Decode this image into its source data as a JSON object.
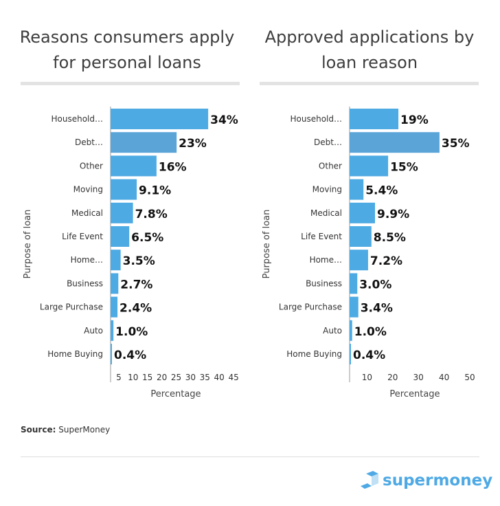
{
  "chart_data": [
    {
      "type": "bar",
      "orientation": "horizontal",
      "title": "Reasons consumers apply for personal loans",
      "xlabel": "Percentage",
      "ylabel": "Purpose of loan",
      "categories": [
        "Household…",
        "Debt…",
        "Other",
        "Moving",
        "Medical",
        "Life Event",
        "Home…",
        "Business",
        "Large Purchase",
        "Auto",
        "Home Buying"
      ],
      "values": [
        34,
        23,
        16,
        9.1,
        7.8,
        6.5,
        3.5,
        2.7,
        2.4,
        1.0,
        0.4
      ],
      "data_labels": [
        "34%",
        "23%",
        "16%",
        "9.1%",
        "7.8%",
        "6.5%",
        "3.5%",
        "2.7%",
        "2.4%",
        "1.0%",
        "0.4%"
      ],
      "xticks": [
        5,
        10,
        15,
        20,
        25,
        30,
        35,
        40,
        45
      ],
      "xlim": [
        0,
        45
      ],
      "highlight_index": 1
    },
    {
      "type": "bar",
      "orientation": "horizontal",
      "title": "Approved applications by loan reason",
      "xlabel": "Percentage",
      "ylabel": "Purpose of loan",
      "categories": [
        "Household…",
        "Debt…",
        "Other",
        "Moving",
        "Medical",
        "Life Event",
        "Home…",
        "Business",
        "Large Purchase",
        "Auto",
        "Home Buying"
      ],
      "values": [
        19,
        35,
        15,
        5.4,
        9.9,
        8.5,
        7.2,
        3.0,
        3.4,
        1.0,
        0.4
      ],
      "data_labels": [
        "19%",
        "35%",
        "15%",
        "5.4%",
        "9.9%",
        "8.5%",
        "7.2%",
        "3.0%",
        "3.4%",
        "1.0%",
        "0.4%"
      ],
      "xticks": [
        10,
        20,
        30,
        40,
        50
      ],
      "xlim": [
        0,
        50
      ],
      "highlight_index": 1
    }
  ],
  "colors": {
    "bar": "#4eaae2",
    "highlight": "#5ba4d8"
  },
  "source": {
    "label": "Source:",
    "value": "SuperMoney"
  },
  "logo": {
    "text": "supermoney"
  }
}
